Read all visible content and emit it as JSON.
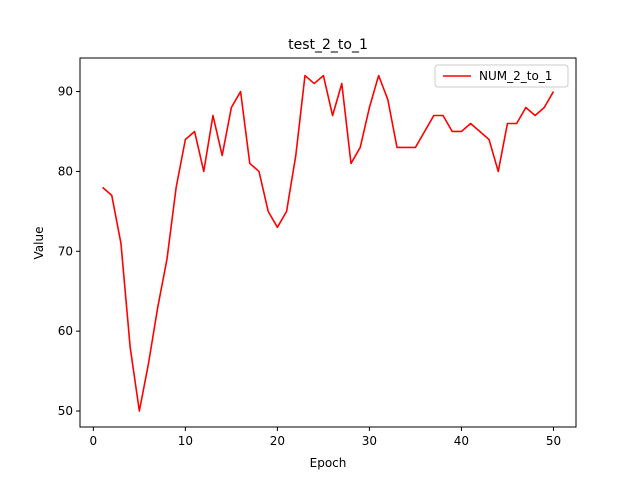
{
  "chart_data": {
    "type": "line",
    "title": "test_2_to_1",
    "xlabel": "Epoch",
    "ylabel": "Value",
    "xlim": [
      -1.45,
      52.45
    ],
    "ylim": [
      48.0,
      94.2
    ],
    "xticks": [
      0,
      10,
      20,
      30,
      40,
      50
    ],
    "yticks": [
      50,
      60,
      70,
      80,
      90
    ],
    "grid": false,
    "legend_position": "top-right",
    "series": [
      {
        "name": "NUM_2_to_1",
        "color": "#ff0000",
        "x": [
          1,
          2,
          3,
          4,
          5,
          6,
          7,
          8,
          9,
          10,
          11,
          12,
          13,
          14,
          15,
          16,
          17,
          18,
          19,
          20,
          21,
          22,
          23,
          24,
          25,
          26,
          27,
          28,
          29,
          30,
          31,
          32,
          33,
          34,
          35,
          36,
          37,
          38,
          39,
          40,
          41,
          42,
          43,
          44,
          45,
          46,
          47,
          48,
          49,
          50
        ],
        "values": [
          78,
          77,
          71,
          58,
          50,
          56,
          63,
          69,
          78,
          84,
          85,
          80,
          87,
          82,
          88,
          90,
          81,
          80,
          75,
          73,
          75,
          82,
          92,
          91,
          92,
          87,
          91,
          81,
          83,
          88,
          92,
          89,
          83,
          83,
          83,
          85,
          87,
          87,
          85,
          85,
          86,
          85,
          84,
          80,
          86,
          86,
          88,
          87,
          88,
          90
        ]
      }
    ]
  }
}
